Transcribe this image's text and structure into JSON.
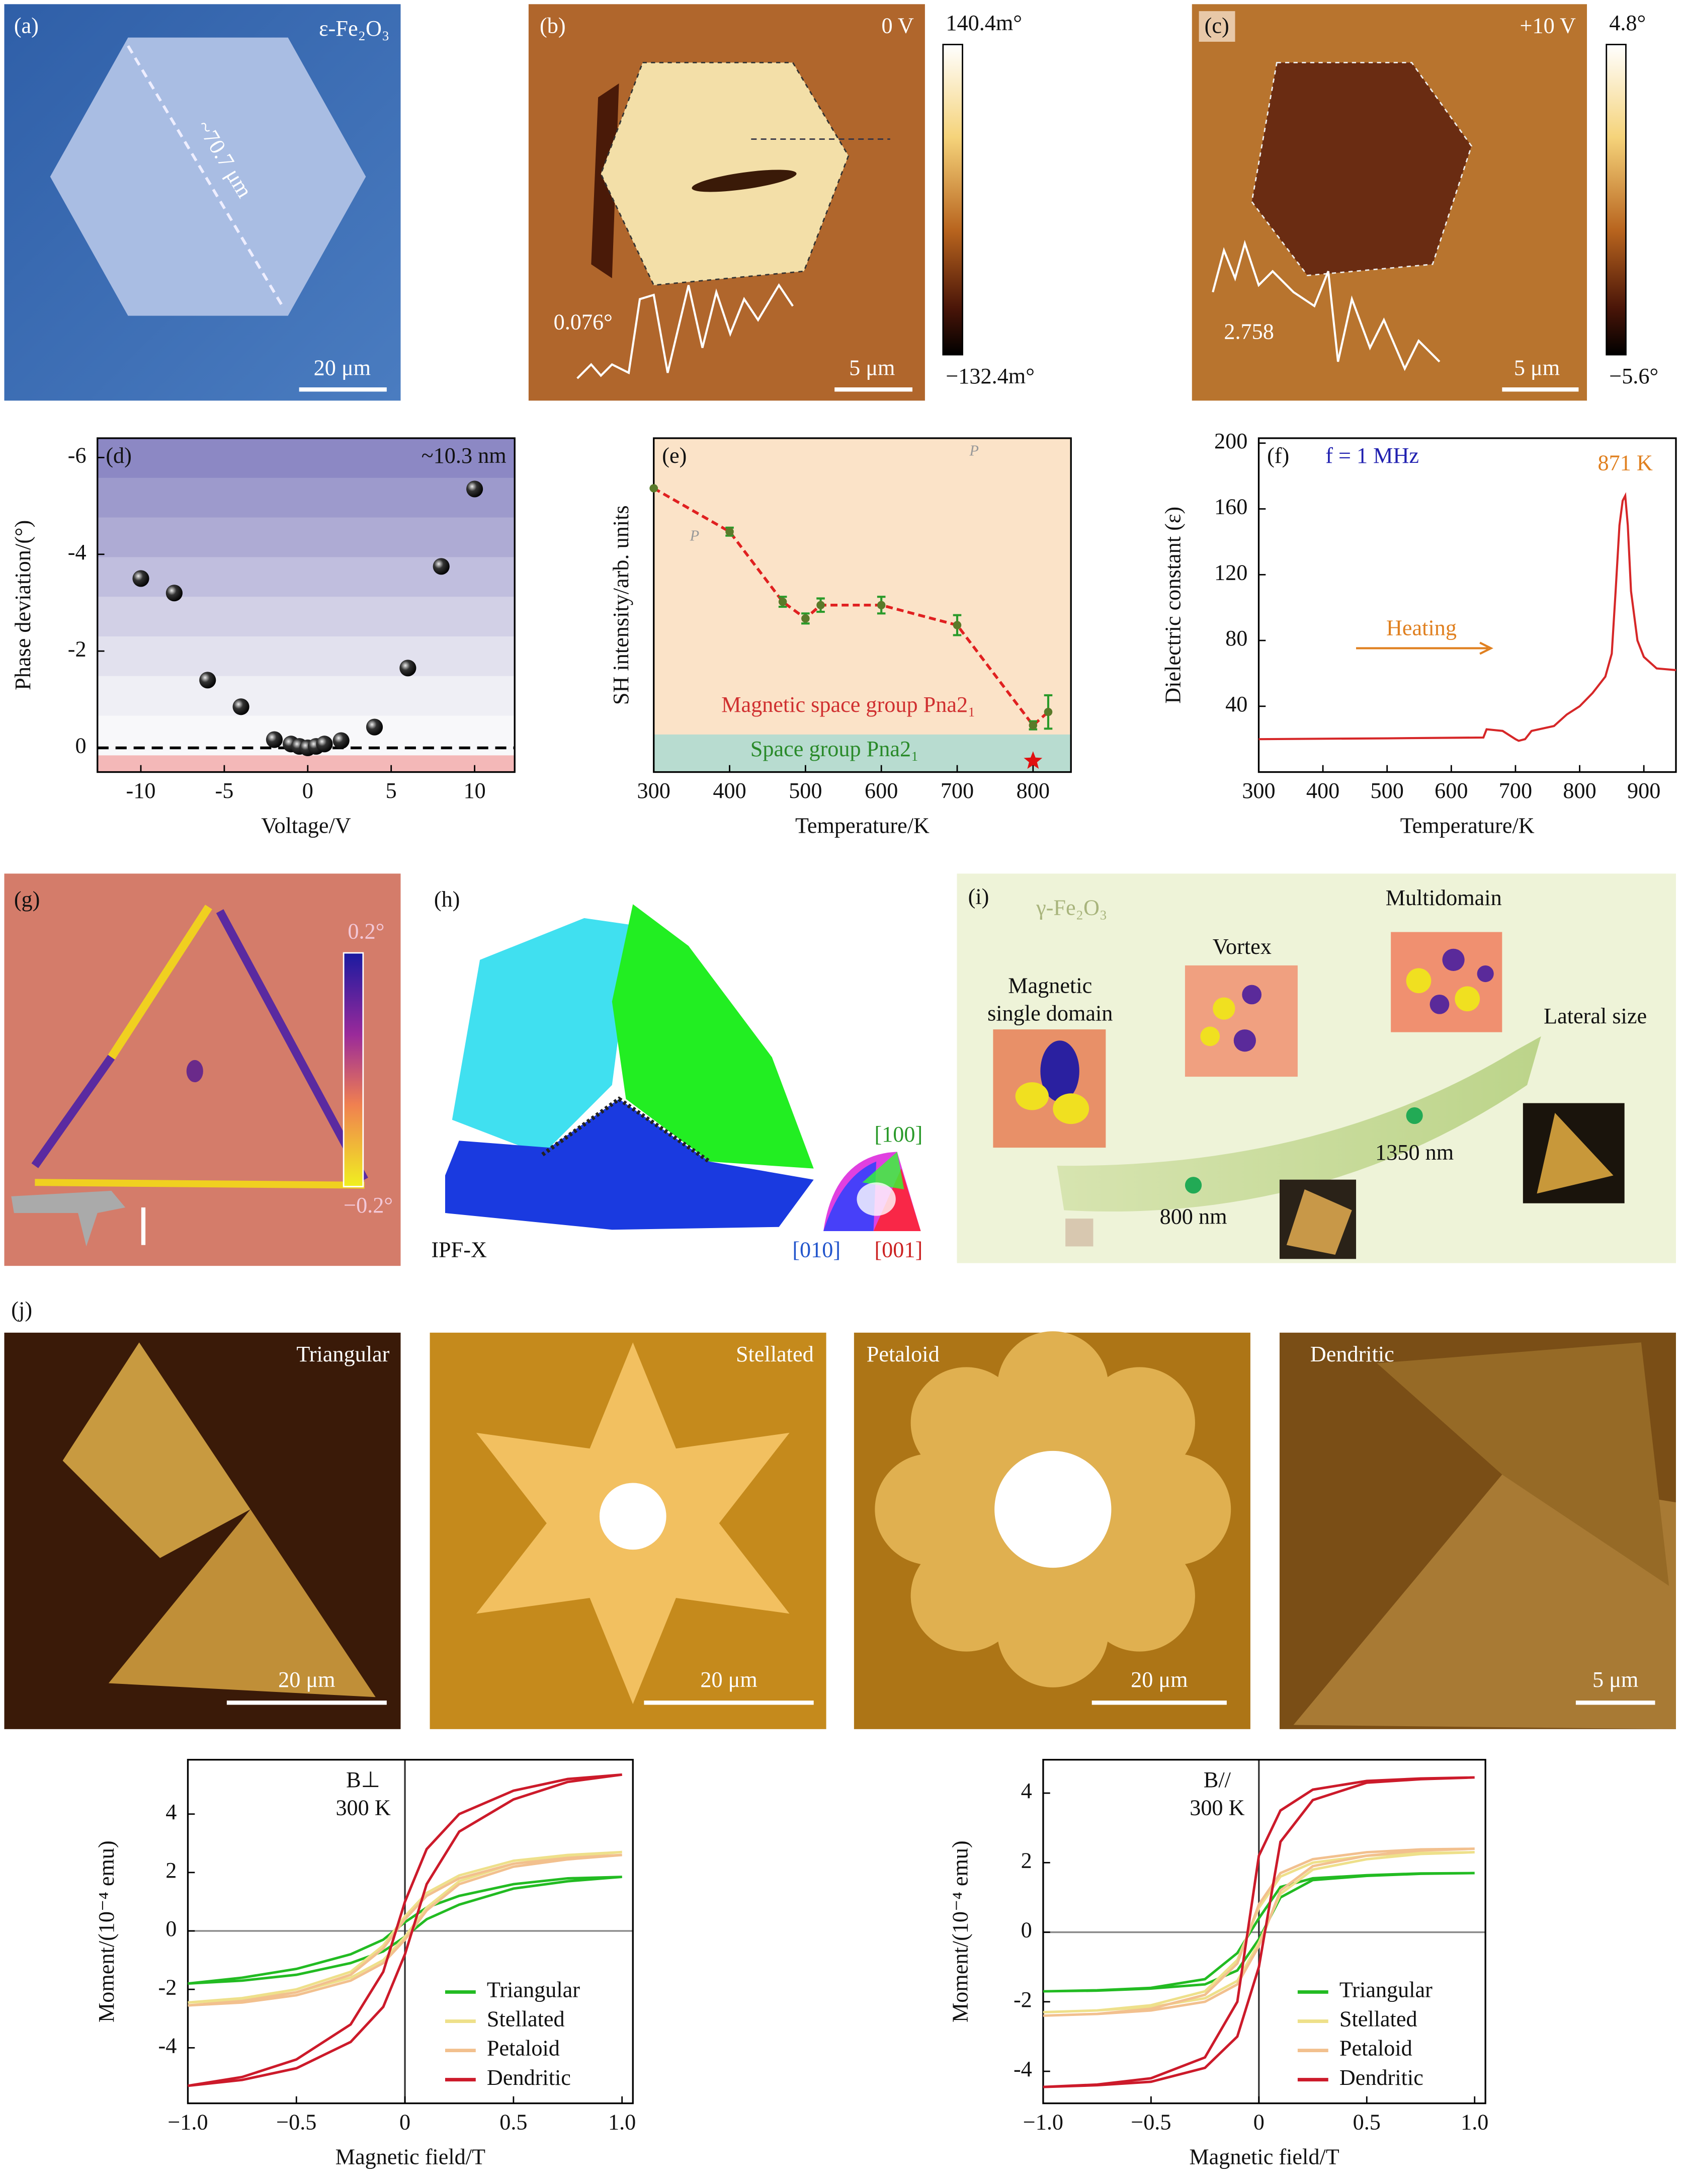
{
  "panels": {
    "a": {
      "label": "(a)",
      "material": "ε-Fe₂O₃",
      "length": "~70.7 μm",
      "scale_bar": "20 μm"
    },
    "b": {
      "label": "(b)",
      "voltage": "0 V",
      "profile_value": "0.076°",
      "scale_bar": "5 μm",
      "colorbar_max": "140.4m°",
      "colorbar_min": "−132.4m°"
    },
    "c": {
      "label": "(c)",
      "voltage": "+10 V",
      "profile_value": "2.758",
      "scale_bar": "5 μm",
      "colorbar_max": "4.8°",
      "colorbar_min": "−5.6°"
    },
    "g": {
      "label": "(g)",
      "colorbar_max": "0.2°",
      "colorbar_min": "−0.2°"
    },
    "h": {
      "label": "(h)",
      "map": "IPF-X",
      "direction_top": "[100]",
      "direction_left": "[010]",
      "direction_right": "[001]"
    },
    "i": {
      "label": "(i)",
      "material": "γ-Fe₂O₃",
      "stage_1": [
        "Magnetic",
        "single domain"
      ],
      "stage_2": "Vortex",
      "stage_3": "Multidomain",
      "axis": "Lateral size",
      "size_1": "800 nm",
      "size_2": "1350 nm"
    },
    "j": {
      "label": "(j)",
      "images": [
        {
          "name": "Triangular",
          "scale_bar": "20 μm"
        },
        {
          "name": "Stellated",
          "scale_bar": "20 μm"
        },
        {
          "name": "Petaloid",
          "scale_bar": "20 μm"
        },
        {
          "name": "Dendritic",
          "scale_bar": "5 μm"
        }
      ]
    }
  },
  "chart_data": [
    {
      "type": "scatter",
      "label": "(d)",
      "annotation": "~10.3 nm",
      "xlabel": "Voltage/V",
      "ylabel": "Phase deviation/(°)",
      "x": [
        -10,
        -8,
        -6,
        -4,
        -2,
        -1,
        -0.5,
        0,
        0.5,
        1,
        2,
        4,
        6,
        8,
        10
      ],
      "values": [
        -3.5,
        -3.2,
        -1.4,
        -0.85,
        -0.17,
        -0.08,
        -0.03,
        0,
        -0.03,
        -0.08,
        -0.15,
        -0.43,
        -1.65,
        -3.75,
        -5.35
      ],
      "color": "#111111",
      "xlim": [
        -12.6,
        12.4
      ],
      "ylim": [
        0.5,
        -6.4
      ],
      "xticks": [
        -10,
        -5,
        0,
        5,
        10
      ],
      "yticks": [
        0,
        -2,
        -4,
        -6
      ]
    },
    {
      "type": "line",
      "label": "(e)",
      "xlabel": "Temperature/K",
      "ylabel": "SH intensity/arb. units",
      "x": [
        300,
        400,
        470,
        500,
        520,
        600,
        700,
        800,
        820
      ],
      "values": [
        0.85,
        0.72,
        0.51,
        0.46,
        0.5,
        0.5,
        0.44,
        0.14,
        0.18
      ],
      "errors": [
        0,
        0.012,
        0.015,
        0.015,
        0.02,
        0.025,
        0.03,
        0.012,
        0.05
      ],
      "transition": 800,
      "color": "#e02020",
      "line_style": "dashed",
      "xlim": [
        300,
        850
      ],
      "ylim": [
        0,
        1
      ],
      "xticks": [
        300,
        400,
        500,
        600,
        700,
        800
      ],
      "annotation_upper": "Magnetic space group Pna2₁",
      "annotation_lower": "Space group Pna2₁",
      "inset_axis_labels": [
        "P",
        "P"
      ]
    },
    {
      "type": "line",
      "label": "(f)",
      "annotation": "f = 1 MHz",
      "xlabel": "Temperature/K",
      "ylabel": "Dielectric constant (ε)",
      "x": [
        300,
        500,
        650,
        655,
        680,
        700,
        705,
        715,
        725,
        760,
        780,
        800,
        820,
        840,
        850,
        856,
        862,
        867,
        871,
        875,
        880,
        890,
        900,
        920,
        950
      ],
      "values": [
        20,
        20.5,
        21,
        26,
        25,
        20,
        19,
        20,
        25,
        28,
        35,
        40,
        48,
        58,
        72,
        110,
        150,
        165,
        168,
        150,
        110,
        80,
        70,
        63,
        62
      ],
      "color": "#d62728",
      "peak_label": "871 K",
      "arrow_label": "Heating",
      "xlim": [
        300,
        950
      ],
      "ylim": [
        0,
        203
      ],
      "xticks": [
        300,
        400,
        500,
        600,
        700,
        800,
        900
      ],
      "yticks": [
        40,
        80,
        120,
        160,
        200
      ]
    },
    {
      "type": "line",
      "field_label": "B⊥",
      "temperature": "300 K",
      "xlabel": "Magnetic field/T",
      "ylabel": "Moment/(10⁻⁴ emu)",
      "x": [
        -1,
        -0.75,
        -0.5,
        -0.25,
        -0.1,
        0,
        0.1,
        0.25,
        0.5,
        0.75,
        1,
        0.75,
        0.5,
        0.25,
        0.1,
        0,
        -0.1,
        -0.25,
        -0.5,
        -0.75,
        -1
      ],
      "series": [
        {
          "name": "Triangular",
          "color": "#22bb22",
          "values": [
            -1.8,
            -1.7,
            -1.5,
            -1.1,
            -0.7,
            -0.2,
            0.4,
            0.9,
            1.45,
            1.7,
            1.85,
            1.8,
            1.6,
            1.2,
            0.8,
            0.3,
            -0.3,
            -0.8,
            -1.3,
            -1.6,
            -1.8
          ]
        },
        {
          "name": "Stellated",
          "color": "#eee08a",
          "values": [
            -2.45,
            -2.35,
            -2.1,
            -1.6,
            -1.0,
            -0.2,
            0.8,
            1.7,
            2.3,
            2.55,
            2.7,
            2.6,
            2.4,
            1.9,
            1.3,
            0.5,
            -0.5,
            -1.4,
            -2.0,
            -2.3,
            -2.45
          ]
        },
        {
          "name": "Petaloid",
          "color": "#f2c08e",
          "values": [
            -2.55,
            -2.45,
            -2.2,
            -1.7,
            -1.1,
            -0.3,
            0.7,
            1.6,
            2.2,
            2.45,
            2.6,
            2.5,
            2.3,
            1.8,
            1.2,
            0.4,
            -0.6,
            -1.5,
            -2.1,
            -2.4,
            -2.55
          ]
        },
        {
          "name": "Dendritic",
          "color": "#cc1a2a",
          "values": [
            -5.3,
            -5.1,
            -4.7,
            -3.8,
            -2.6,
            -0.8,
            1.6,
            3.4,
            4.5,
            5.1,
            5.35,
            5.2,
            4.8,
            4.0,
            2.8,
            1.0,
            -1.4,
            -3.2,
            -4.4,
            -5.0,
            -5.3
          ]
        }
      ],
      "legend": "lower right",
      "xlim": [
        -1,
        1.05
      ],
      "ylim": [
        -5.9,
        5.86
      ],
      "xticks": [
        {
          "value": -1,
          "label": "−1.0"
        },
        {
          "value": -0.5,
          "label": "−0.5"
        },
        0,
        0.5,
        {
          "value": 1,
          "label": "1.0"
        }
      ],
      "yticks": [
        -4,
        -2,
        0,
        2,
        4
      ]
    },
    {
      "type": "line",
      "field_label": "B//",
      "temperature": "300 K",
      "xlabel": "Magnetic field/T",
      "ylabel": "Moment/(10⁻⁴ emu)",
      "x": [
        -1,
        -0.75,
        -0.5,
        -0.25,
        -0.1,
        0,
        0.1,
        0.25,
        0.5,
        0.75,
        1,
        0.75,
        0.5,
        0.25,
        0.1,
        0,
        -0.1,
        -0.25,
        -0.5,
        -0.75,
        -1
      ],
      "series": [
        {
          "name": "Triangular",
          "color": "#22bb22",
          "values": [
            -1.7,
            -1.68,
            -1.62,
            -1.5,
            -1.1,
            -0.2,
            1.0,
            1.5,
            1.62,
            1.68,
            1.7,
            1.69,
            1.64,
            1.55,
            1.3,
            0.4,
            -0.6,
            -1.35,
            -1.6,
            -1.67,
            -1.7
          ]
        },
        {
          "name": "Stellated",
          "color": "#eee08a",
          "values": [
            -2.3,
            -2.25,
            -2.15,
            -1.9,
            -1.4,
            -0.3,
            1.1,
            1.8,
            2.1,
            2.25,
            2.3,
            2.28,
            2.2,
            2.0,
            1.6,
            0.7,
            -0.8,
            -1.7,
            -2.1,
            -2.25,
            -2.3
          ]
        },
        {
          "name": "Petaloid",
          "color": "#f2c08e",
          "values": [
            -2.4,
            -2.35,
            -2.25,
            -2.0,
            -1.5,
            -0.4,
            1.2,
            1.9,
            2.2,
            2.35,
            2.4,
            2.38,
            2.3,
            2.1,
            1.7,
            0.8,
            -0.9,
            -1.8,
            -2.2,
            -2.35,
            -2.4
          ]
        },
        {
          "name": "Dendritic",
          "color": "#cc1a2a",
          "values": [
            -4.45,
            -4.4,
            -4.3,
            -3.9,
            -3.0,
            -1.0,
            2.6,
            3.8,
            4.3,
            4.4,
            4.45,
            4.42,
            4.35,
            4.1,
            3.5,
            2.2,
            -2.0,
            -3.6,
            -4.2,
            -4.38,
            -4.45
          ]
        }
      ],
      "legend": "lower right",
      "xlim": [
        -1,
        1.05
      ],
      "ylim": [
        -4.92,
        4.96
      ],
      "xticks": [
        {
          "value": -1,
          "label": "−1.0"
        },
        {
          "value": -0.5,
          "label": "−0.5"
        },
        0,
        0.5,
        {
          "value": 1,
          "label": "1.0"
        }
      ],
      "yticks": [
        -4,
        -2,
        0,
        2,
        4
      ]
    }
  ]
}
